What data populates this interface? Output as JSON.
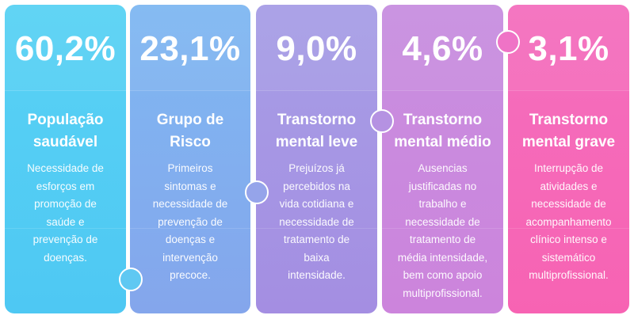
{
  "cards": [
    {
      "percent": "60,2%",
      "title_line1": "População",
      "title_line2": "saudável",
      "description_lines": [
        "Necessidade de",
        "esforços em",
        "promoção de",
        "saúde e",
        "prevenção de",
        "doenças."
      ]
    },
    {
      "percent": "23,1%",
      "title_line1": "Grupo de",
      "title_line2": "Risco",
      "description_lines": [
        "Primeiros",
        "sintomas e",
        "necessidade de",
        "prevenção de",
        "doenças e",
        "intervenção",
        "precoce."
      ]
    },
    {
      "percent": "9,0%",
      "title_line1": "Transtorno",
      "title_line2": "mental leve",
      "description_lines": [
        "Prejuízos já",
        "percebidos na",
        "vida cotidiana e",
        "necessidade de",
        "tratamento de",
        "baixa",
        "intensidade."
      ]
    },
    {
      "percent": "4,6%",
      "title_line1": "Transtorno",
      "title_line2": "mental médio",
      "description_lines": [
        "Ausencias",
        "justificadas no",
        "trabalho e",
        "necessidade de",
        "tratamento de",
        "média intensidade,",
        "bem como apoio",
        "multiprofissional."
      ]
    },
    {
      "percent": "3,1%",
      "title_line1": "Transtorno",
      "title_line2": "mental grave",
      "description_lines": [
        "Interrupção de",
        "atividades e",
        "necessidade de",
        "acompanhamento",
        "clínico intenso e",
        "sistemático",
        "multiprofissional."
      ]
    }
  ],
  "colors": {
    "card1": "#4ec8f3",
    "card2": "#84a6ec",
    "card3": "#a48ee2",
    "card4": "#cc84dc",
    "card5": "#f763b3",
    "text": "#ffffff"
  }
}
